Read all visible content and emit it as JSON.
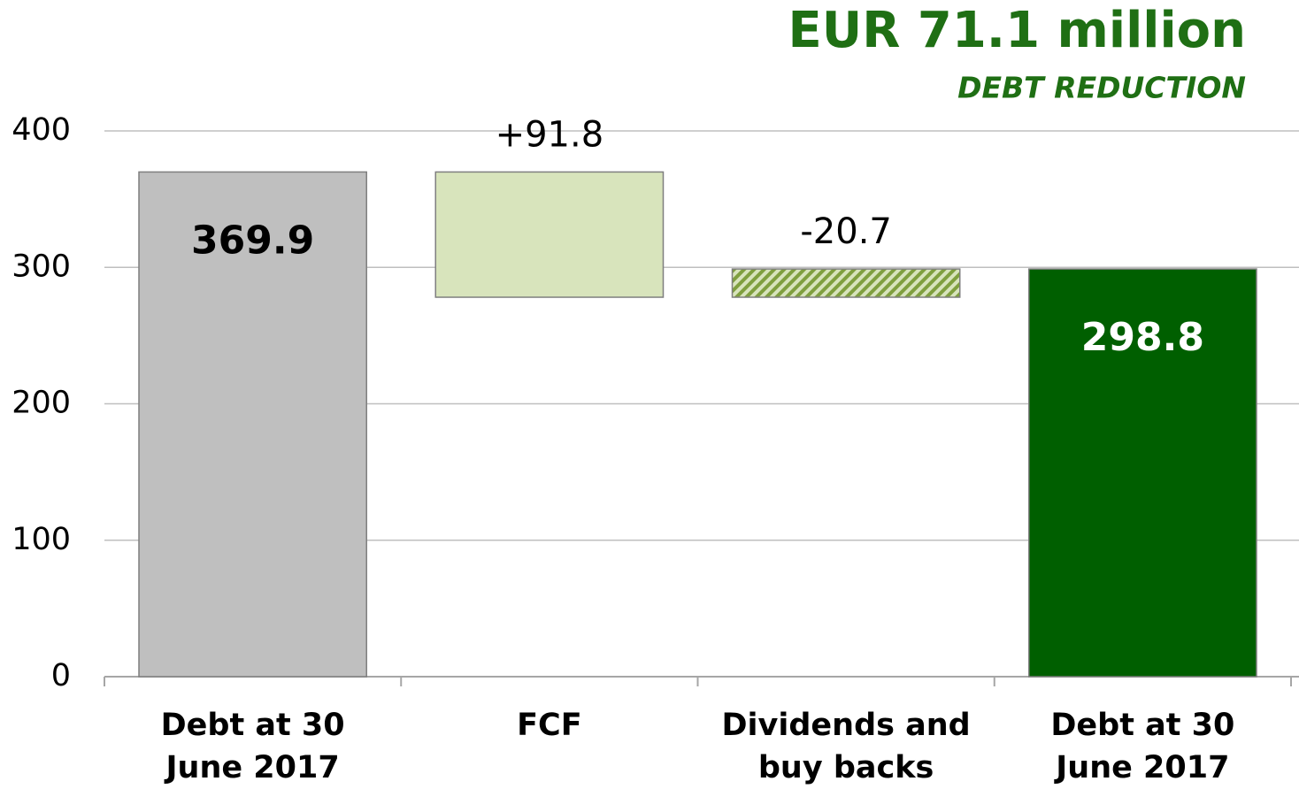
{
  "chart_data": {
    "type": "waterfall",
    "title": "EUR 71.1 million",
    "subtitle": "DEBT REDUCTION",
    "categories": [
      "Debt at 30 June 2017",
      "FCF",
      "Dividends and buy backs",
      "Debt at 30 June 2017"
    ],
    "values": [
      369.9,
      91.8,
      -20.7,
      298.8
    ],
    "value_labels": [
      "369.9",
      "+91.8",
      "-20.7",
      "298.8"
    ],
    "colors": [
      "#bfbfbf",
      "#d8e4bc",
      "#9bbb59",
      "#005f00"
    ],
    "hatch": [
      false,
      false,
      true,
      false
    ],
    "ylim": [
      0,
      400
    ],
    "yticks": [
      0,
      100,
      200,
      300,
      400
    ],
    "grid": true
  }
}
